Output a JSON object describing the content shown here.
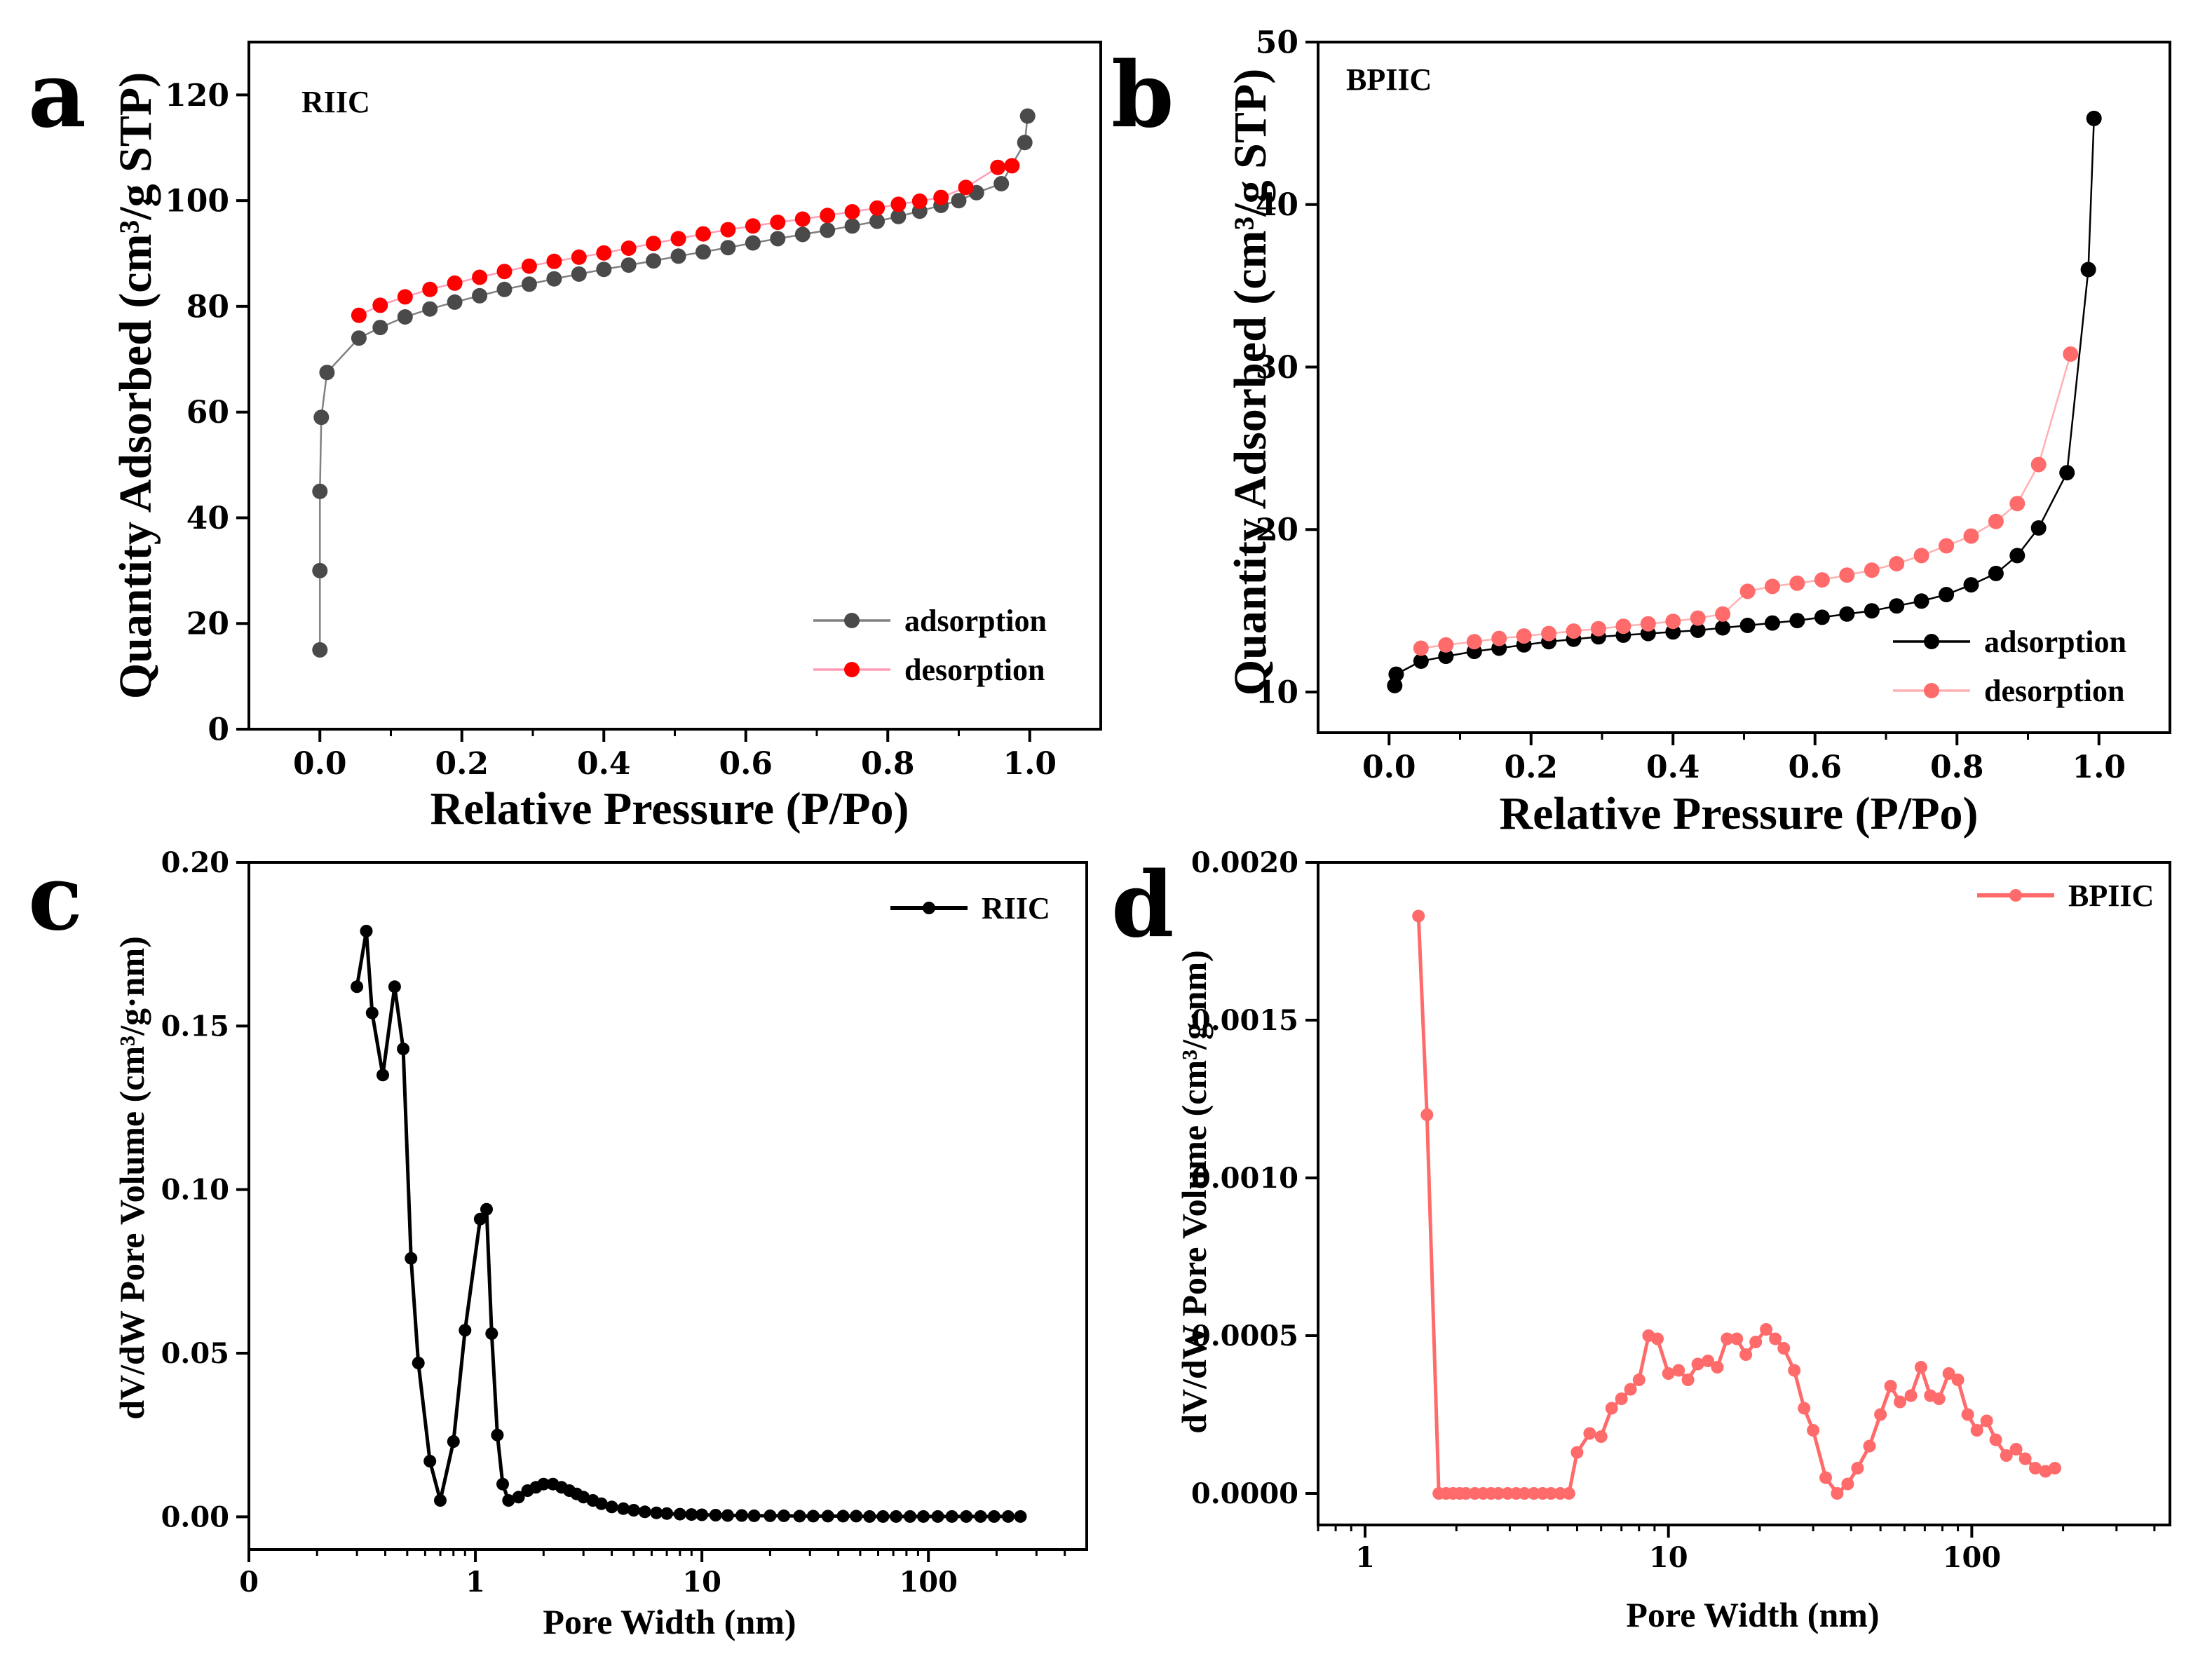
{
  "chart_data": [
    {
      "id": "a",
      "type": "scatter",
      "panel_letter": "a",
      "inner_label": "RIIC",
      "xlabel": "Relative Pressure (P/Po)",
      "ylabel": "Quantity Adsorbed (cm³/g STP)",
      "xscale": "linear",
      "xlim": [
        -0.1,
        1.1
      ],
      "ylim": [
        0,
        130
      ],
      "xticks": [
        0.0,
        0.2,
        0.4,
        0.6,
        0.8,
        1.0
      ],
      "xtick_labels": [
        "0.0",
        "0.2",
        "0.4",
        "0.6",
        "0.8",
        "1.0"
      ],
      "yticks": [
        0,
        20,
        40,
        60,
        80,
        100,
        120
      ],
      "ytick_labels": [
        "0",
        "20",
        "40",
        "60",
        "80",
        "100",
        "120"
      ],
      "legend_position": "bottom-right",
      "series": [
        {
          "name": "adsorption",
          "color": "#4a4a4a",
          "line_color": "#808080",
          "x": [
            0.0,
            0.0,
            0.0,
            0.002,
            0.01,
            0.055,
            0.085,
            0.12,
            0.155,
            0.19,
            0.225,
            0.26,
            0.295,
            0.33,
            0.365,
            0.4,
            0.435,
            0.47,
            0.505,
            0.54,
            0.575,
            0.61,
            0.645,
            0.68,
            0.715,
            0.75,
            0.785,
            0.815,
            0.845,
            0.875,
            0.9,
            0.925,
            0.96,
            0.993,
            0.997
          ],
          "y": [
            15,
            30,
            45,
            59,
            67.5,
            74,
            76,
            78,
            79.5,
            80.8,
            82,
            83.2,
            84.2,
            85.2,
            86.1,
            87,
            87.8,
            88.6,
            89.5,
            90.3,
            91.1,
            92,
            92.8,
            93.6,
            94.4,
            95.2,
            96.1,
            97,
            98,
            99.1,
            100,
            101.5,
            103.2,
            111,
            116
          ]
        },
        {
          "name": "desorption",
          "color": "#ff0000",
          "line_color": "#ff9eb5",
          "x": [
            0.055,
            0.085,
            0.12,
            0.155,
            0.19,
            0.225,
            0.26,
            0.295,
            0.33,
            0.365,
            0.4,
            0.435,
            0.47,
            0.505,
            0.54,
            0.575,
            0.61,
            0.645,
            0.68,
            0.715,
            0.75,
            0.785,
            0.815,
            0.845,
            0.875,
            0.91,
            0.955,
            0.975
          ],
          "y": [
            78.3,
            80.2,
            81.8,
            83.2,
            84.4,
            85.5,
            86.6,
            87.6,
            88.5,
            89.3,
            90.1,
            91,
            91.9,
            92.8,
            93.7,
            94.5,
            95.2,
            95.9,
            96.5,
            97.2,
            97.9,
            98.6,
            99.3,
            99.9,
            100.6,
            102.5,
            106.3,
            106.6
          ]
        }
      ]
    },
    {
      "id": "b",
      "type": "scatter",
      "panel_letter": "b",
      "inner_label": "BPIIC",
      "xlabel": "Relative Pressure (P/Po)",
      "ylabel": "Quantity Adsorbed (cm³/g STP)",
      "xscale": "linear",
      "xlim": [
        -0.1,
        1.1
      ],
      "ylim": [
        7.5,
        50
      ],
      "xticks": [
        0.0,
        0.2,
        0.4,
        0.6,
        0.8,
        1.0
      ],
      "xtick_labels": [
        "0.0",
        "0.2",
        "0.4",
        "0.6",
        "0.8",
        "1.0"
      ],
      "yticks": [
        10,
        20,
        30,
        40,
        50
      ],
      "ytick_labels": [
        "10",
        "20",
        "30",
        "40",
        "50"
      ],
      "legend_position": "bottom-right",
      "series": [
        {
          "name": "adsorption",
          "color": "#000000",
          "line_color": "#000000",
          "x": [
            0.008,
            0.01,
            0.045,
            0.08,
            0.12,
            0.155,
            0.19,
            0.225,
            0.26,
            0.295,
            0.33,
            0.365,
            0.4,
            0.435,
            0.47,
            0.505,
            0.54,
            0.575,
            0.61,
            0.645,
            0.68,
            0.715,
            0.75,
            0.785,
            0.82,
            0.855,
            0.885,
            0.915,
            0.955,
            0.985,
            0.993
          ],
          "y": [
            10.4,
            11.1,
            11.9,
            12.2,
            12.5,
            12.7,
            12.9,
            13.1,
            13.25,
            13.4,
            13.5,
            13.6,
            13.7,
            13.8,
            13.95,
            14.1,
            14.25,
            14.4,
            14.6,
            14.8,
            15.0,
            15.3,
            15.6,
            16.0,
            16.6,
            17.3,
            18.4,
            20.1,
            23.5,
            36.0,
            45.3
          ]
        },
        {
          "name": "desorption",
          "color": "#ff6b6b",
          "line_color": "#ffb0b0",
          "x": [
            0.045,
            0.08,
            0.12,
            0.155,
            0.19,
            0.225,
            0.26,
            0.295,
            0.33,
            0.365,
            0.4,
            0.435,
            0.47,
            0.505,
            0.54,
            0.575,
            0.61,
            0.645,
            0.68,
            0.715,
            0.75,
            0.785,
            0.82,
            0.855,
            0.885,
            0.915,
            0.96
          ],
          "y": [
            12.7,
            12.9,
            13.1,
            13.3,
            13.45,
            13.6,
            13.75,
            13.9,
            14.05,
            14.2,
            14.35,
            14.55,
            14.8,
            16.2,
            16.5,
            16.7,
            16.9,
            17.2,
            17.5,
            17.9,
            18.4,
            19.0,
            19.6,
            20.5,
            21.6,
            24.0,
            30.8
          ]
        }
      ]
    },
    {
      "id": "c",
      "type": "line",
      "panel_letter": "c",
      "xlabel": "Pore Width (nm)",
      "ylabel": "dV/dW Pore Volume (cm³/g·nm)",
      "xscale": "log",
      "xlim": [
        0.1,
        500
      ],
      "ylim": [
        -0.01,
        0.2
      ],
      "xticks": [
        0.1,
        1,
        10,
        100
      ],
      "xtick_labels": [
        "0",
        "1",
        "10",
        "100"
      ],
      "yticks": [
        0.0,
        0.05,
        0.1,
        0.15,
        0.2
      ],
      "ytick_labels": [
        "0.00",
        "0.05",
        "0.10",
        "0.15",
        "0.20"
      ],
      "legend_position": "top-right",
      "series": [
        {
          "name": "RIIC",
          "color": "#000000",
          "line_color": "#000000",
          "x": [
            0.3,
            0.33,
            0.35,
            0.39,
            0.44,
            0.48,
            0.52,
            0.56,
            0.63,
            0.7,
            0.8,
            0.9,
            1.05,
            1.12,
            1.18,
            1.25,
            1.32,
            1.4,
            1.55,
            1.7,
            1.85,
            2.0,
            2.2,
            2.4,
            2.6,
            2.8,
            3.0,
            3.3,
            3.6,
            4.0,
            4.5,
            5.0,
            5.6,
            6.3,
            7.0,
            8.0,
            9.0,
            10,
            11.5,
            13,
            15,
            17,
            20,
            23,
            27,
            31,
            36,
            42,
            48,
            55,
            63,
            72,
            83,
            95,
            110,
            127,
            147,
            170,
            195,
            225,
            255
          ],
          "y": [
            0.162,
            0.179,
            0.154,
            0.135,
            0.162,
            0.143,
            0.079,
            0.047,
            0.017,
            0.005,
            0.023,
            0.057,
            0.091,
            0.094,
            0.056,
            0.025,
            0.01,
            0.005,
            0.006,
            0.008,
            0.009,
            0.01,
            0.01,
            0.009,
            0.008,
            0.007,
            0.006,
            0.005,
            0.004,
            0.003,
            0.0025,
            0.002,
            0.0015,
            0.0012,
            0.001,
            0.0008,
            0.0007,
            0.0006,
            0.0005,
            0.0004,
            0.0004,
            0.0003,
            0.0003,
            0.0003,
            0.0002,
            0.0002,
            0.0002,
            0.0002,
            0.0002,
            0.0001,
            0.0001,
            0.0001,
            0.0001,
            0.0001,
            0.0001,
            0.0001,
            0.0001,
            0.0001,
            0.0001,
            0.0001,
            0.0001
          ]
        }
      ]
    },
    {
      "id": "d",
      "type": "line",
      "panel_letter": "d",
      "xlabel": "Pore Width (nm)",
      "ylabel": "dV/dW Pore Volume (cm³/g·nm)",
      "xscale": "log",
      "xlim": [
        0.7,
        450
      ],
      "ylim": [
        -0.0001,
        0.002
      ],
      "xticks": [
        1,
        10,
        100
      ],
      "xtick_labels": [
        "1",
        "10",
        "100"
      ],
      "yticks": [
        0.0,
        0.0005,
        0.001,
        0.0015,
        0.002
      ],
      "ytick_labels": [
        "0.0000",
        "0.0005",
        "0.0010",
        "0.0015",
        "0.0020"
      ],
      "legend_position": "top-right",
      "series": [
        {
          "name": "BPIIC",
          "color": "#ff6b6b",
          "line_color": "#ff6b6b",
          "x": [
            1.5,
            1.6,
            1.75,
            1.85,
            1.95,
            2.05,
            2.15,
            2.3,
            2.45,
            2.6,
            2.75,
            2.95,
            3.15,
            3.35,
            3.6,
            3.85,
            4.1,
            4.4,
            4.7,
            5.0,
            5.5,
            6.0,
            6.5,
            7.0,
            7.5,
            8.0,
            8.6,
            9.2,
            10,
            10.8,
            11.6,
            12.5,
            13.5,
            14.5,
            15.6,
            16.8,
            18,
            19.4,
            21,
            22.5,
            24,
            26,
            28,
            30,
            33,
            36,
            39,
            42,
            46,
            50,
            54,
            58,
            63,
            68,
            73,
            78,
            84,
            90,
            97,
            104,
            112,
            120,
            130,
            140,
            150,
            162,
            175,
            188
          ],
          "y": [
            0.00183,
            0.0012,
            0.0,
            0.0,
            0.0,
            0.0,
            0.0,
            0.0,
            0.0,
            0.0,
            0.0,
            0.0,
            0.0,
            0.0,
            0.0,
            0.0,
            0.0,
            0.0,
            0.0,
            0.00013,
            0.00019,
            0.00018,
            0.00027,
            0.0003,
            0.00033,
            0.00036,
            0.0005,
            0.00049,
            0.00038,
            0.00039,
            0.00036,
            0.00041,
            0.00042,
            0.0004,
            0.00049,
            0.00049,
            0.00044,
            0.00048,
            0.00052,
            0.00049,
            0.00046,
            0.00039,
            0.00027,
            0.0002,
            5e-05,
            0.0,
            3e-05,
            8e-05,
            0.00015,
            0.00025,
            0.00034,
            0.00029,
            0.00031,
            0.0004,
            0.00031,
            0.0003,
            0.00038,
            0.00036,
            0.00025,
            0.0002,
            0.00023,
            0.00017,
            0.00012,
            0.00014,
            0.00011,
            8e-05,
            7e-05,
            8e-05
          ]
        }
      ]
    }
  ]
}
